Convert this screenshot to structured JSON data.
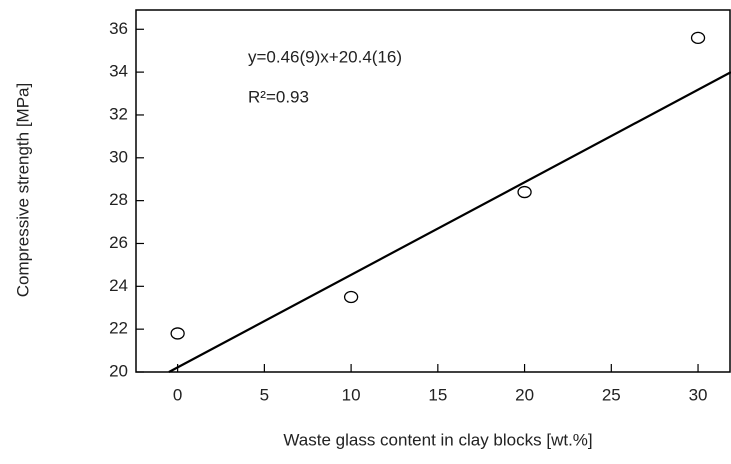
{
  "chart_data": {
    "type": "scatter",
    "xlabel": "Waste glass content in clay blocks [wt.%]",
    "ylabel": "Compressive strength [MPa]",
    "annotations": [
      "y=0.46(9)x+20.4(16)",
      "R²=0.93"
    ],
    "series": [
      {
        "type": "scatter",
        "color": "#000000",
        "x": [
          0,
          10,
          20,
          30
        ],
        "values": [
          21.8,
          23.5,
          28.4,
          35.6
        ]
      },
      {
        "type": "line",
        "color": "#000000",
        "x": [
          -0.5,
          31.9
        ],
        "values": [
          20.0,
          34.0
        ]
      }
    ],
    "xlim": [
      -2.4,
      31.9
    ],
    "ylim": [
      20,
      36.9
    ],
    "xticks": [
      0,
      5,
      10,
      15,
      20,
      25,
      30
    ],
    "yticks": [
      20,
      22,
      24,
      26,
      28,
      30,
      32,
      34,
      36
    ],
    "grid": false
  }
}
